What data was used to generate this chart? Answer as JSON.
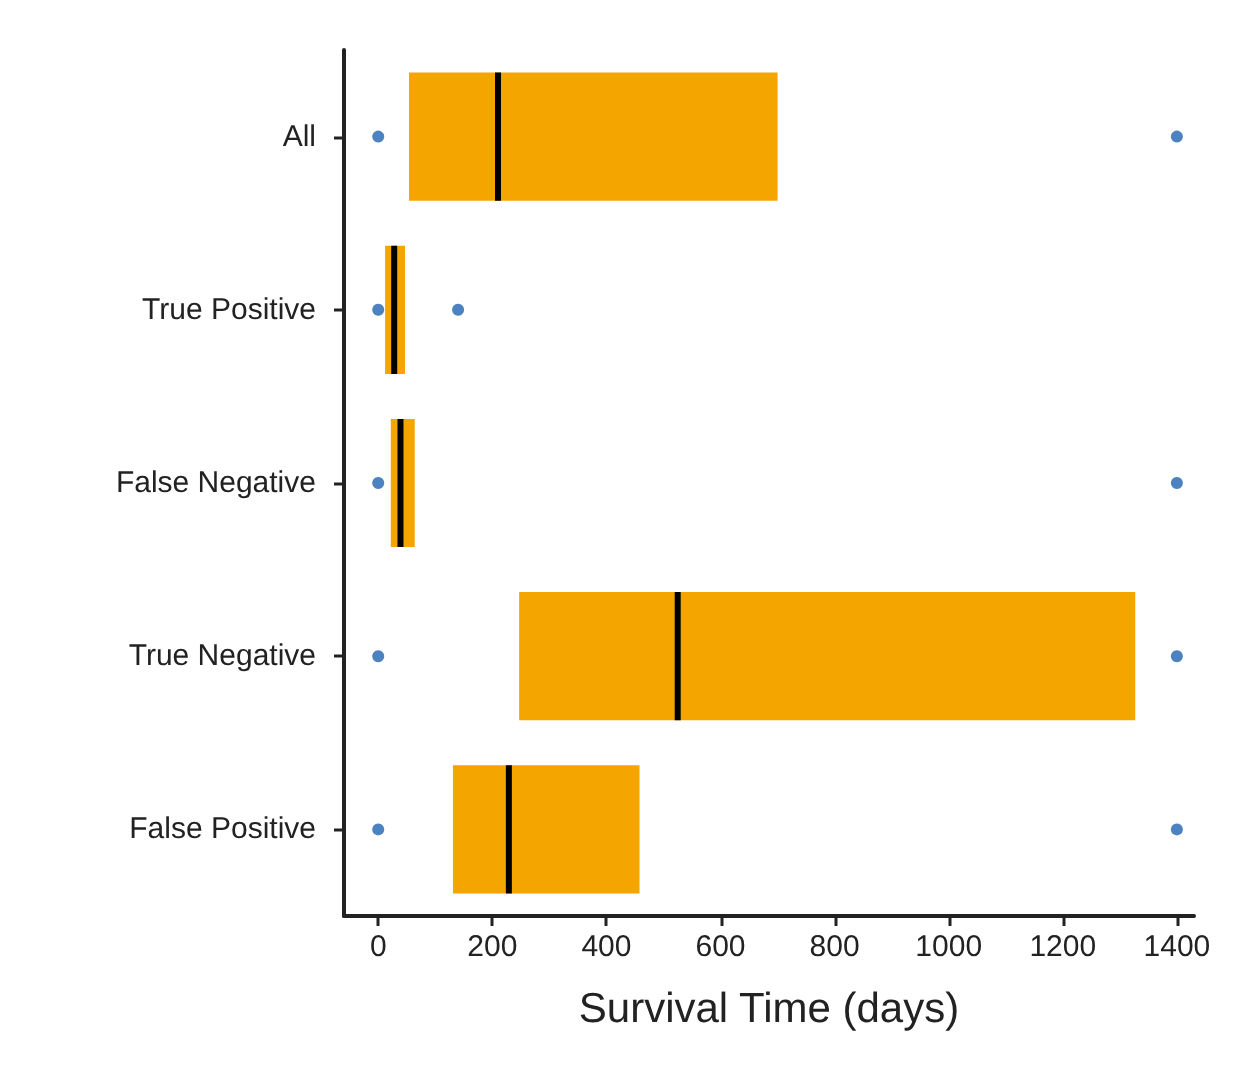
{
  "chart_data": {
    "type": "box",
    "orientation": "horizontal",
    "xlabel": "Survival Time (days)",
    "categories": [
      "All",
      "True Positive",
      "False Negative",
      "True Negative",
      "False Positive"
    ],
    "color": "#f5a500",
    "boxes": [
      {
        "low": 54,
        "q1": 54,
        "median": 210,
        "q3": 700,
        "high": 700,
        "outliers": [
          0,
          1400
        ]
      },
      {
        "low": 12,
        "q1": 12,
        "median": 28,
        "q3": 47,
        "high": 47,
        "outliers": [
          0,
          140
        ]
      },
      {
        "low": 22,
        "q1": 22,
        "median": 39,
        "q3": 64,
        "high": 64,
        "outliers": [
          0,
          1400
        ]
      },
      {
        "low": 247,
        "q1": 247,
        "median": 525,
        "q3": 1327,
        "high": 1327,
        "outliers": [
          0,
          1400
        ]
      },
      {
        "low": 131,
        "q1": 131,
        "median": 229,
        "q3": 458,
        "high": 458,
        "outliers": [
          0,
          1400
        ]
      }
    ],
    "xlim": [
      -60,
      1430
    ],
    "xticks": [
      0,
      200,
      400,
      600,
      800,
      1000,
      1200,
      1400
    ],
    "grid": false
  }
}
